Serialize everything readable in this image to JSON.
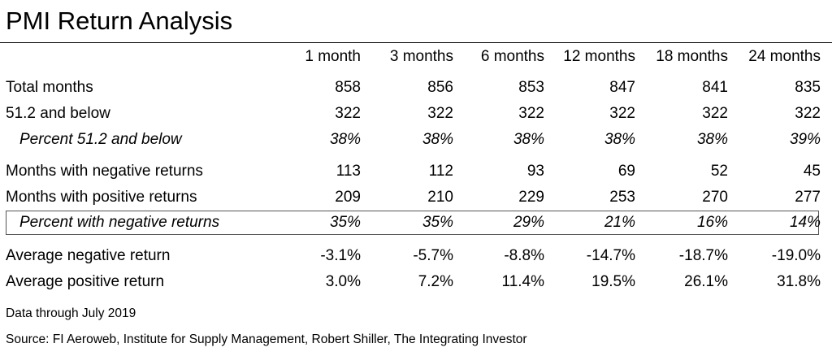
{
  "title": "PMI Return Analysis",
  "columns": [
    "1 month",
    "3 months",
    "6 months",
    "12 months",
    "18 months",
    "24 months"
  ],
  "rows": [
    {
      "label": "Total months",
      "values": [
        "858",
        "856",
        "853",
        "847",
        "841",
        "835"
      ]
    },
    {
      "label": "51.2 and below",
      "values": [
        "322",
        "322",
        "322",
        "322",
        "322",
        "322"
      ]
    },
    {
      "label": "Percent 51.2 and below",
      "values": [
        "38%",
        "38%",
        "38%",
        "38%",
        "38%",
        "39%"
      ]
    },
    {
      "label": "Months with negative returns",
      "values": [
        "113",
        "112",
        "93",
        "69",
        "52",
        "45"
      ]
    },
    {
      "label": "Months with positive returns",
      "values": [
        "209",
        "210",
        "229",
        "253",
        "270",
        "277"
      ]
    },
    {
      "label": "Percent with negative returns",
      "values": [
        "35%",
        "35%",
        "29%",
        "21%",
        "16%",
        "14%"
      ]
    },
    {
      "label": "Average negative return",
      "values": [
        "-3.1%",
        "-5.7%",
        "-8.8%",
        "-14.7%",
        "-18.7%",
        "-19.0%"
      ]
    },
    {
      "label": "Average positive return",
      "values": [
        "3.0%",
        "7.2%",
        "11.4%",
        "19.5%",
        "26.1%",
        "31.8%"
      ]
    }
  ],
  "notes": {
    "data_through": "Data through July 2019",
    "source": "Source: FI Aeroweb, Institute for Supply Management, Robert Shiller, The Integrating Investor"
  }
}
